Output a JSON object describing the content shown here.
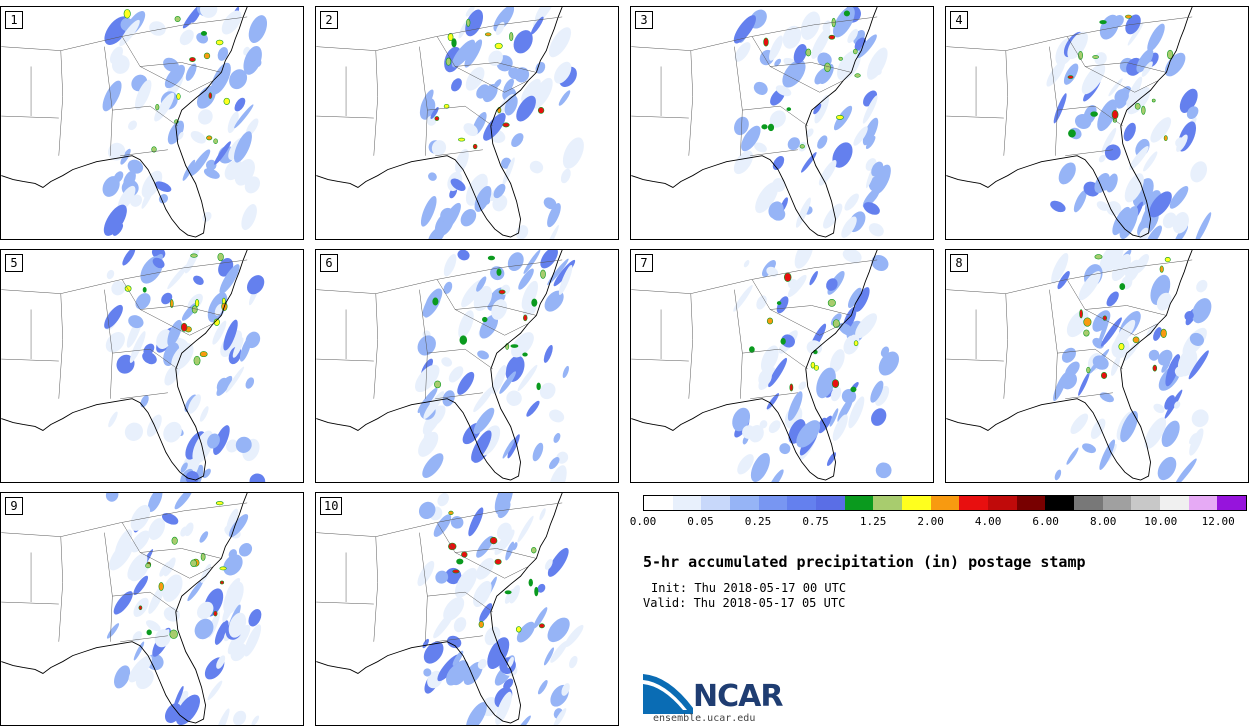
{
  "panels": [
    {
      "label": "1",
      "seed": 11
    },
    {
      "label": "2",
      "seed": 23
    },
    {
      "label": "3",
      "seed": 37
    },
    {
      "label": "4",
      "seed": 41
    },
    {
      "label": "5",
      "seed": 53
    },
    {
      "label": "6",
      "seed": 67
    },
    {
      "label": "7",
      "seed": 71
    },
    {
      "label": "8",
      "seed": 83
    },
    {
      "label": "9",
      "seed": 97
    },
    {
      "label": "10",
      "seed": 109
    }
  ],
  "colorbar": {
    "colors": [
      "#ffffff",
      "#e8f0fc",
      "#c8d8fa",
      "#96b4f6",
      "#7896f2",
      "#6480ee",
      "#5a6ee6",
      "#0a9a1e",
      "#a8cc6e",
      "#ffff1e",
      "#f89a10",
      "#e80f0f",
      "#c00a0a",
      "#780000",
      "#000000",
      "#787878",
      "#a0a0a0",
      "#c8c8c8",
      "#f0f0f0",
      "#e6aaf5",
      "#9614dc"
    ],
    "ticks": [
      "0.00",
      "0.05",
      "0.25",
      "0.75",
      "1.25",
      "2.00",
      "4.00",
      "6.00",
      "8.00",
      "10.00",
      "12.00"
    ]
  },
  "title": "5-hr accumulated precipitation (in) postage stamp",
  "init": "Init: Thu 2018-05-17 00 UTC",
  "valid": "Valid: Thu 2018-05-17 05 UTC",
  "logo": {
    "text": "NCAR",
    "site": "ensemble.ucar.edu",
    "brand_color": "#1f3d72",
    "swoosh_color": "#0a6cb4"
  }
}
